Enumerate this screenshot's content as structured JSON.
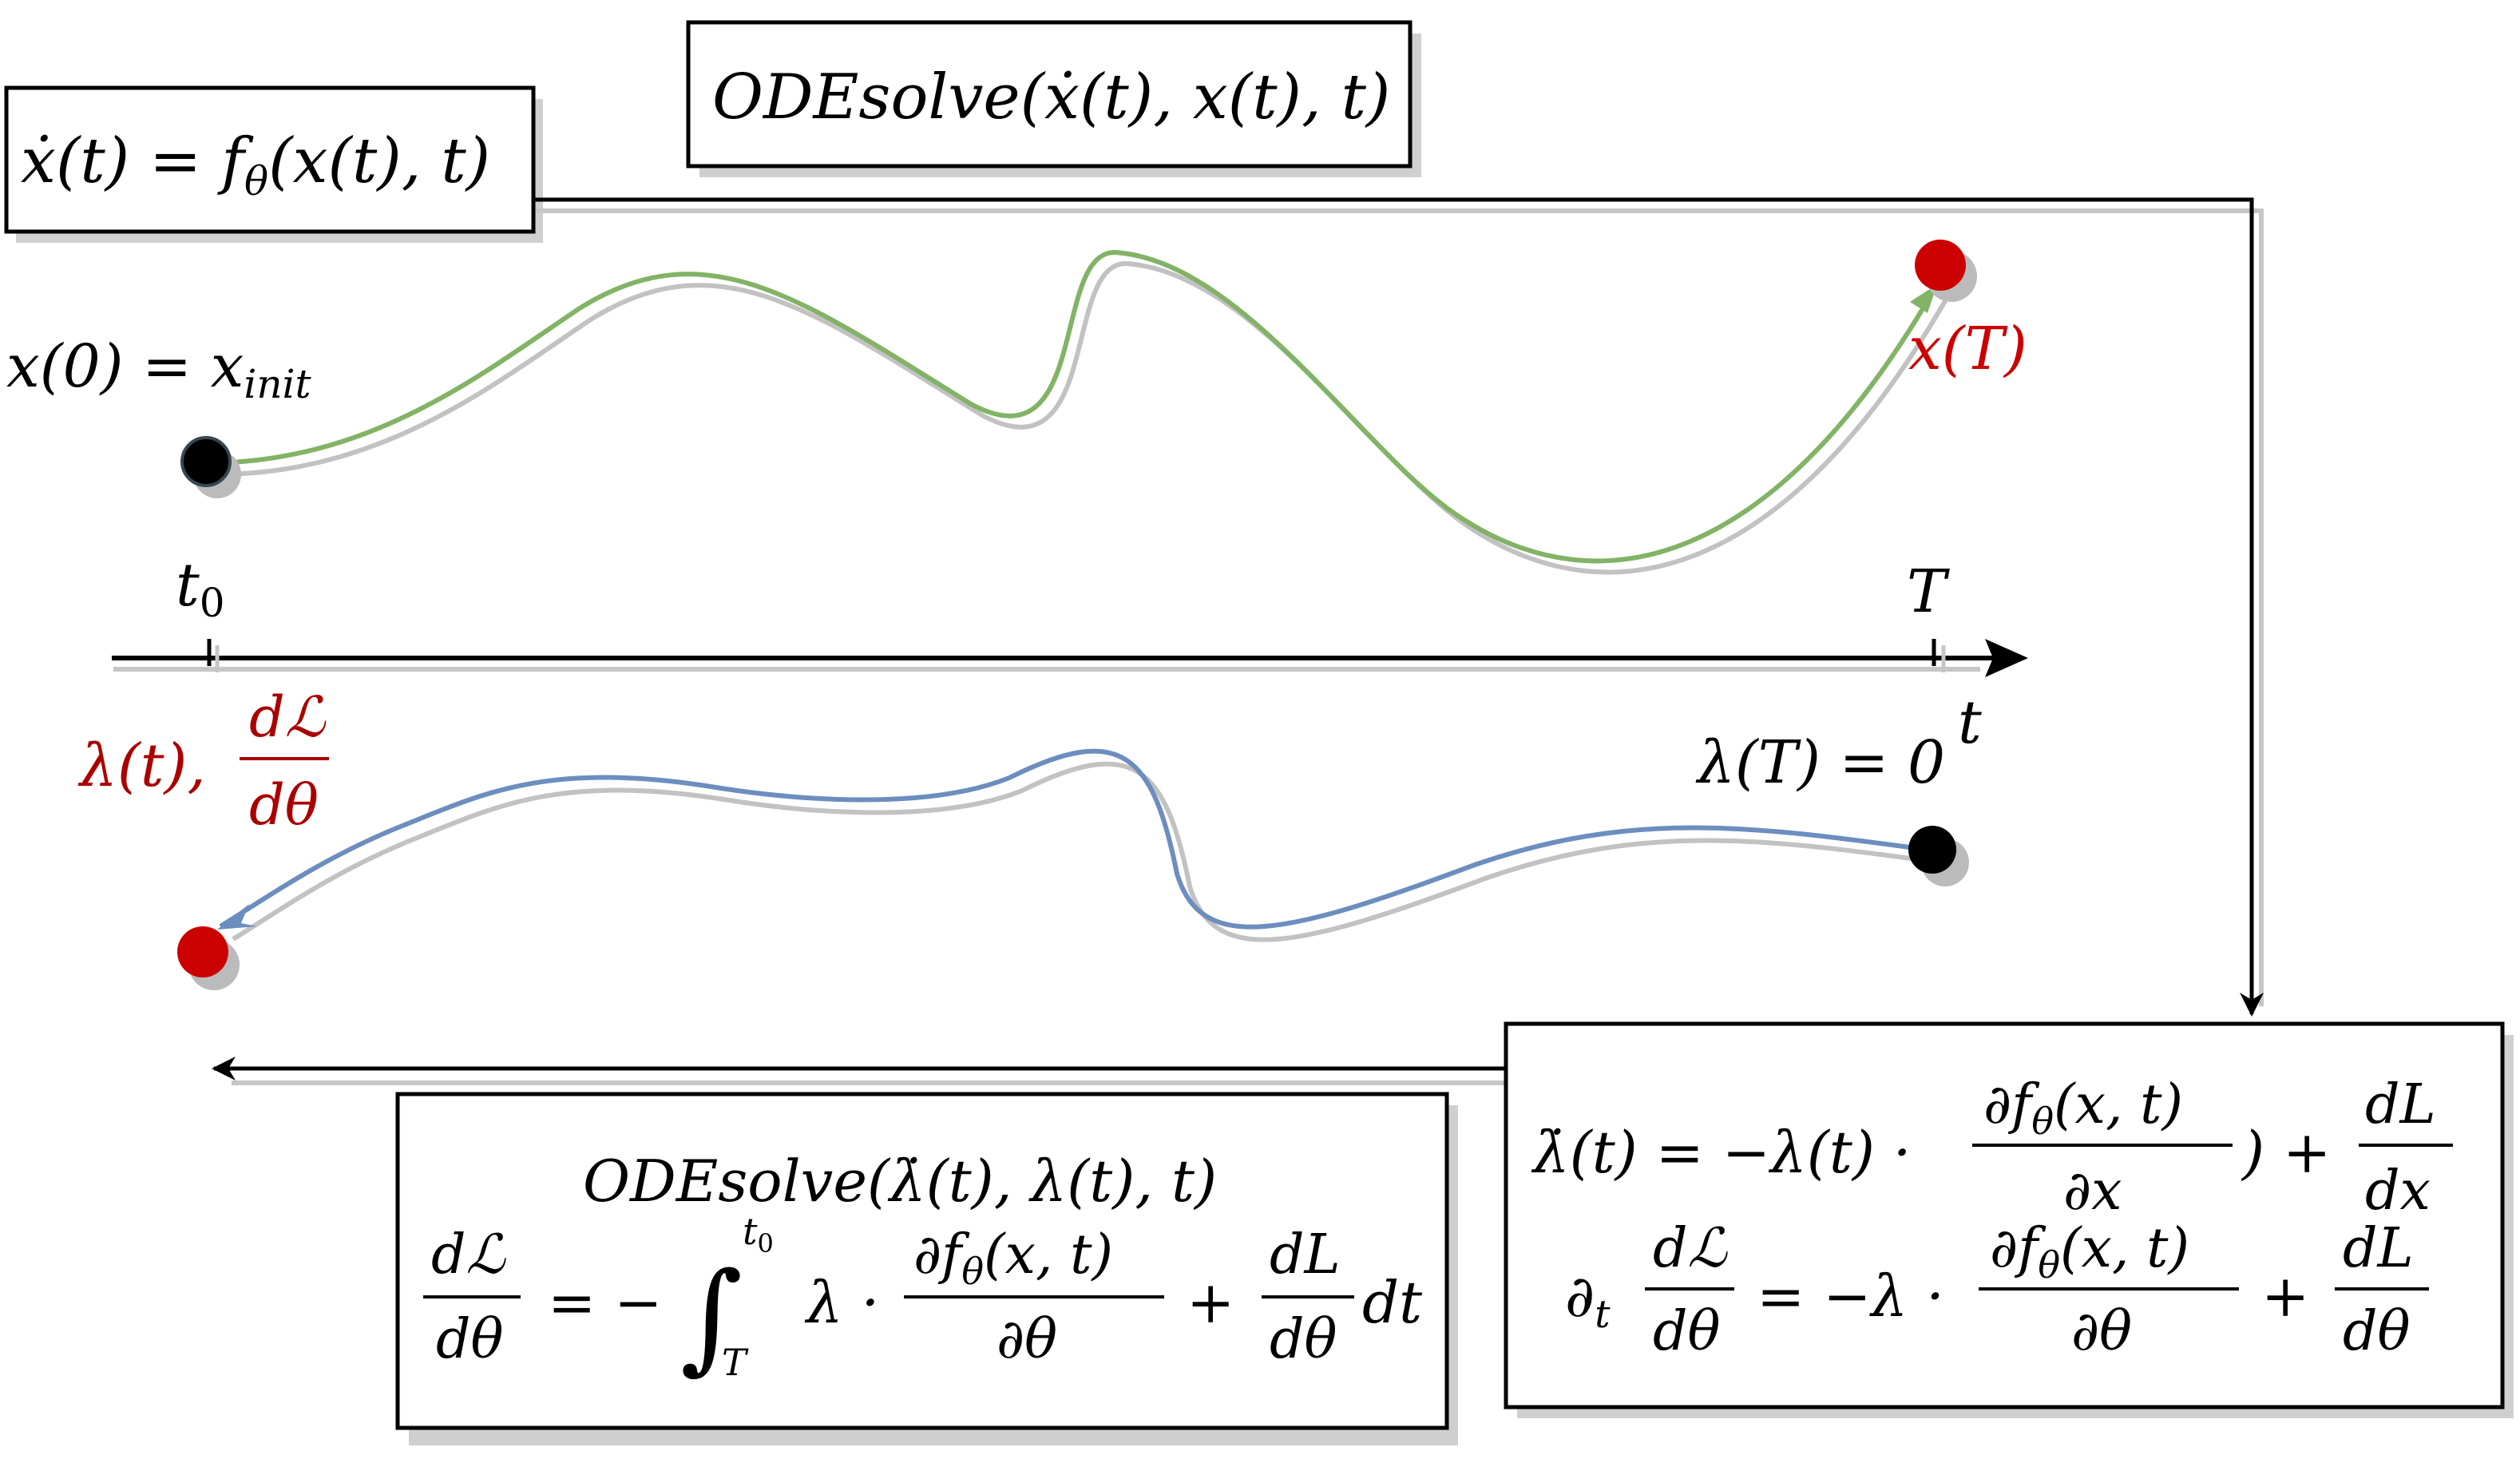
{
  "colors": {
    "forward_curve": "#82b366",
    "adjoint_curve": "#6c8ebf",
    "shadow": "#bdbdbd",
    "point_start": "#000000",
    "point_end": "#cc0000",
    "label_red": "#cc0000",
    "label_darkred": "#aa0000",
    "box_border": "#000000"
  },
  "ode_box": {
    "lhs": "ẋ(t) = f",
    "sub": "θ",
    "rhs": "(x(t), t)"
  },
  "odesolve_forward": {
    "text": "ODEsolve(ẋ(t), x(t), t)"
  },
  "forward": {
    "init_label_main": "x(0) = x",
    "init_label_sub": "init",
    "end_label": "x(T)"
  },
  "axis": {
    "t0_main": "t",
    "t0_sub": "0",
    "T_label": "T",
    "axis_label": "t"
  },
  "adjoint": {
    "end_condition": "λ(T) = 0",
    "start_label_lambda": "λ(t),",
    "start_label_num": "dℒ",
    "start_label_den": "dθ"
  },
  "right_box": {
    "eq1_lhs": "λ̇(t) = −λ(t) ·",
    "eq1_frac_num": "∂f",
    "eq1_frac_num_sub": "θ",
    "eq1_frac_num_rest": "(x, t)",
    "eq1_frac_den": "∂x",
    "eq1_mid": ") +",
    "eq1_frac2_num": "dL",
    "eq1_frac2_den": "dx",
    "eq2_prefix": "∂",
    "eq2_prefix_sub": "t",
    "eq2_frac_num": "dℒ",
    "eq2_frac_den": "dθ",
    "eq2_mid": "= −λ ·",
    "eq2_frac2_num": "∂f",
    "eq2_frac2_num_sub": "θ",
    "eq2_frac2_num_rest": "(x, t)",
    "eq2_frac2_den": "∂θ",
    "eq2_plus": "+",
    "eq2_frac3_num": "dL",
    "eq2_frac3_den": "dθ"
  },
  "bottom_box": {
    "odesolve": "ODEsolve(λ̇(t), λ(t), t)",
    "lhs_num": "dℒ",
    "lhs_den": "dθ",
    "eq": "= −",
    "integral": "∫",
    "int_upper_main": "t",
    "int_upper_sub": "0",
    "int_lower": "T",
    "lambda_dot": "λ ·",
    "frac_num": "∂f",
    "frac_num_sub": "θ",
    "frac_num_rest": "(x, t)",
    "frac_den": "∂θ",
    "plus": "+",
    "frac2_num": "dL",
    "frac2_den": "dθ",
    "dt": "dt"
  }
}
